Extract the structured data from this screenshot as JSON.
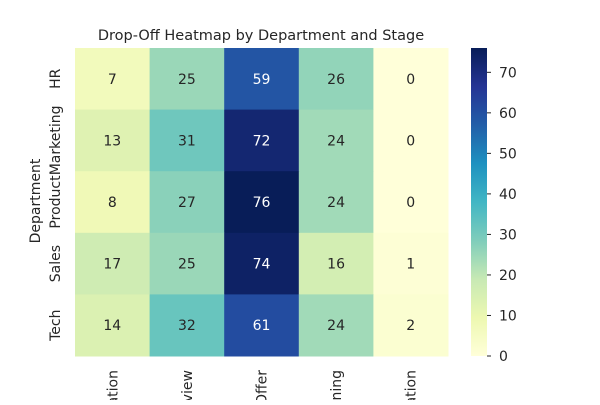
{
  "chart_data": {
    "type": "heatmap",
    "title": "Drop-Off Heatmap by Department and Stage",
    "ylabel": "Department",
    "xlabel": "",
    "rows": [
      "HR",
      "Marketing",
      "Product",
      "Sales",
      "Tech"
    ],
    "columns": [
      "Application",
      "Interview",
      "Offer",
      "Onboarding",
      "Confirmation"
    ],
    "column_tick_labels_visible": [
      "ation",
      "view",
      "Offer",
      "ning",
      "ation"
    ],
    "values": [
      [
        7,
        25,
        59,
        26,
        0
      ],
      [
        13,
        31,
        72,
        24,
        0
      ],
      [
        8,
        27,
        76,
        24,
        0
      ],
      [
        17,
        25,
        74,
        16,
        1
      ],
      [
        14,
        32,
        61,
        24,
        2
      ]
    ],
    "colormap": "YlGnBu",
    "colorbar": {
      "min": 0,
      "max": 76,
      "ticks": [
        0,
        10,
        20,
        30,
        40,
        50,
        60,
        70
      ]
    },
    "annotations": true,
    "grid": false
  }
}
